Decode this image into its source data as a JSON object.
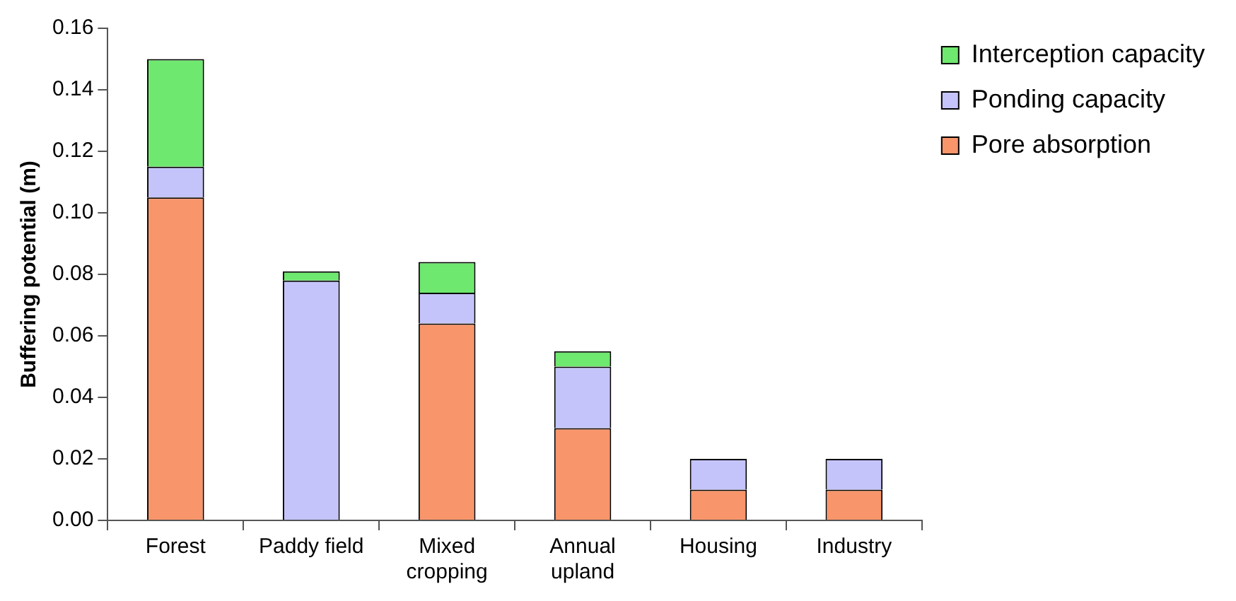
{
  "chart_data": {
    "type": "bar",
    "ylabel": "Buffering potential (m)",
    "categories": [
      "Forest",
      "Paddy field",
      "Mixed cropping",
      "Annual upland",
      "Housing",
      "Industry"
    ],
    "stacked": true,
    "ylim": [
      0,
      0.16
    ],
    "yticks": [
      {
        "value": 0,
        "label": "0.00"
      },
      {
        "value": 0.02,
        "label": "0.02"
      },
      {
        "value": 0.04,
        "label": "0.04"
      },
      {
        "value": 0.06,
        "label": "0.06"
      },
      {
        "value": 0.08,
        "label": "0.08"
      },
      {
        "value": 0.1,
        "label": "0.10"
      },
      {
        "value": 0.12,
        "label": "0.12"
      },
      {
        "value": 0.14,
        "label": "0.14"
      },
      {
        "value": 0.16,
        "label": "0.16"
      }
    ],
    "grid": false,
    "legend": "top right",
    "series": [
      {
        "name": "Pore absorption",
        "color": "#f8956a",
        "values": [
          0.105,
          0,
          0.064,
          0.03,
          0.01,
          0.01
        ]
      },
      {
        "name": "Ponding capacity",
        "color": "#c4c4fa",
        "values": [
          0.01,
          0.078,
          0.01,
          0.02,
          0.01,
          0.01
        ]
      },
      {
        "name": "Interception capacity",
        "color": "#6ee86e",
        "values": [
          0.035,
          0.003,
          0.01,
          0.005,
          null,
          null
        ]
      }
    ]
  }
}
